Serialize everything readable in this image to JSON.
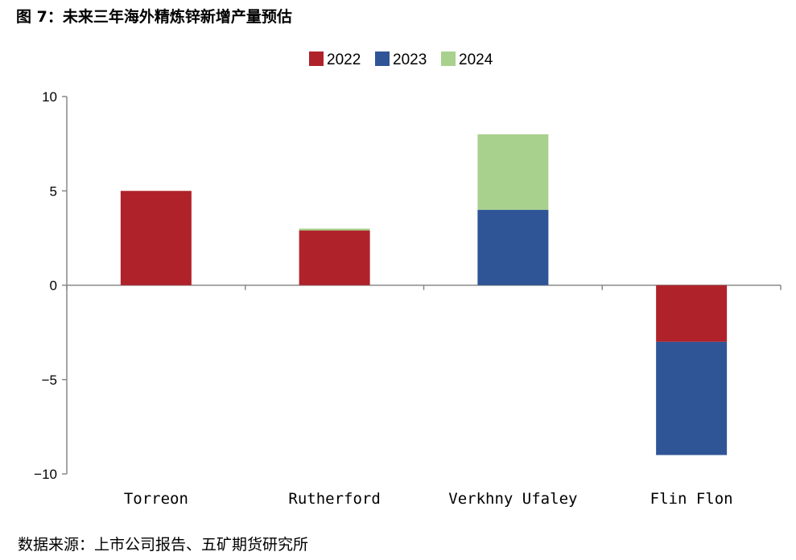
{
  "title": "图 7：未来三年海外精炼锌新增产量预估",
  "source": "数据来源：上市公司报告、五矿期货研究所",
  "colors": {
    "2022": "#b0222a",
    "2023": "#2f5597",
    "2024": "#a9d18e",
    "axis": "#888888"
  },
  "chart_data": {
    "type": "bar",
    "stacked": true,
    "categories": [
      "Torreon",
      "Rutherford",
      "Verkhny Ufaley",
      "Flin Flon"
    ],
    "series": [
      {
        "name": "2022",
        "values": [
          5,
          2.9,
          0,
          -3
        ]
      },
      {
        "name": "2023",
        "values": [
          0,
          0,
          4,
          -6
        ]
      },
      {
        "name": "2024",
        "values": [
          0,
          0.1,
          4,
          0
        ]
      }
    ],
    "ylim": [
      -10,
      10
    ],
    "yticks": [
      10,
      5,
      0,
      -5,
      -10
    ],
    "ytick_labels": [
      "10",
      "5",
      "0",
      "−5",
      "−10"
    ],
    "legend_position": "top-center",
    "grid": false
  }
}
